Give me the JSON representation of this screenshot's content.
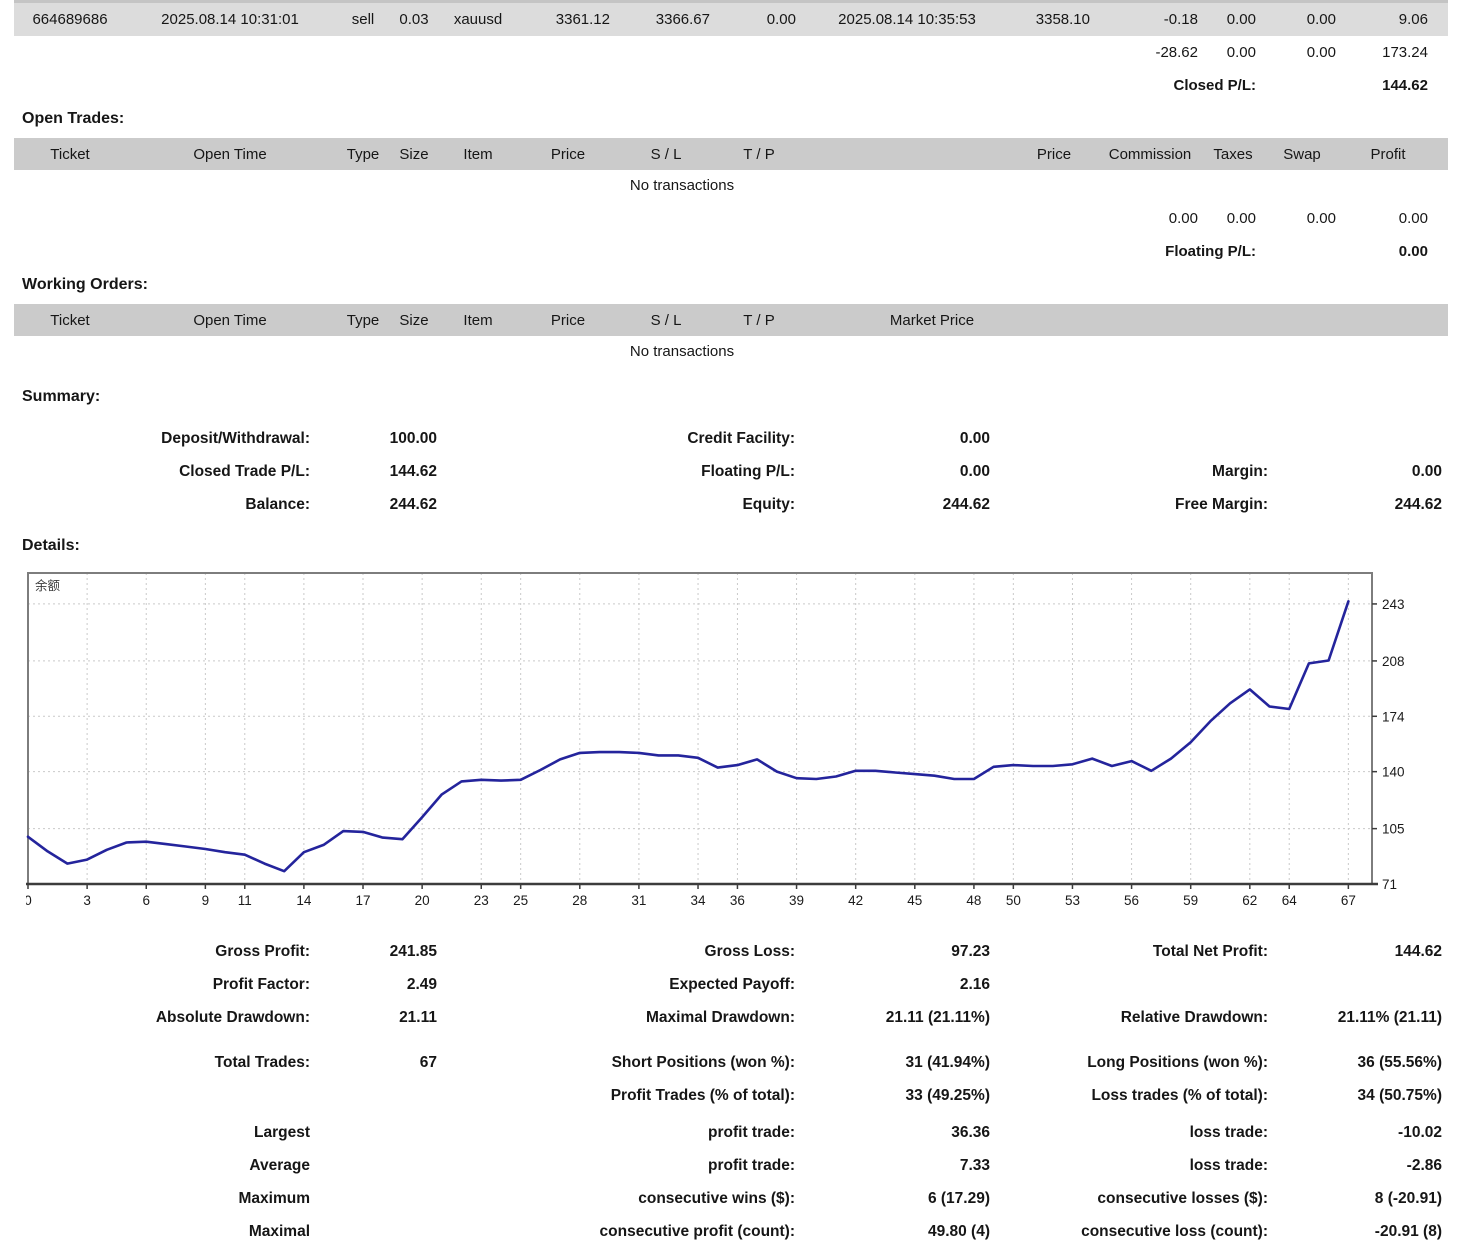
{
  "colors": {
    "accent_line": "#24249C",
    "header_bg": "#cbcbcb",
    "row_bg": "#dcdcdc",
    "grid": "#c9c9c9"
  },
  "closed_trades": {
    "row": {
      "ticket": "664689686",
      "open_time": "2025.08.14 10:31:01",
      "type": "sell",
      "size": "0.03",
      "item": "xauusd",
      "open_price": "3361.12",
      "sl": "3366.67",
      "tp": "0.00",
      "close_time": "2025.08.14 10:35:53",
      "close_price": "3358.10",
      "commission": "-0.18",
      "taxes": "0.00",
      "swap": "0.00",
      "profit": "9.06"
    },
    "totals": {
      "commission": "-28.62",
      "taxes": "0.00",
      "swap": "0.00",
      "profit": "173.24"
    },
    "closed_pl_label": "Closed P/L:",
    "closed_pl_value": "144.62"
  },
  "open_trades": {
    "title": "Open Trades:",
    "headers": {
      "ticket": "Ticket",
      "open_time": "Open Time",
      "type": "Type",
      "size": "Size",
      "item": "Item",
      "price": "Price",
      "sl": "S / L",
      "tp": "T / P",
      "price2": "Price",
      "commission": "Commission",
      "taxes": "Taxes",
      "swap": "Swap",
      "profit": "Profit"
    },
    "empty_text": "No transactions",
    "totals": {
      "commission": "0.00",
      "taxes": "0.00",
      "swap": "0.00",
      "profit": "0.00"
    },
    "floating_pl_label": "Floating P/L:",
    "floating_pl_value": "0.00"
  },
  "working_orders": {
    "title": "Working Orders:",
    "headers": {
      "ticket": "Ticket",
      "open_time": "Open Time",
      "type": "Type",
      "size": "Size",
      "item": "Item",
      "price": "Price",
      "sl": "S / L",
      "tp": "T / P",
      "market_price": "Market Price"
    },
    "empty_text": "No transactions"
  },
  "summary": {
    "title": "Summary:",
    "rows": [
      {
        "l1": "Deposit/Withdrawal:",
        "v1": "100.00",
        "l2": "Credit Facility:",
        "v2": "0.00",
        "l3": "",
        "v3": ""
      },
      {
        "l1": "Closed Trade P/L:",
        "v1": "144.62",
        "l2": "Floating P/L:",
        "v2": "0.00",
        "l3": "Margin:",
        "v3": "0.00"
      },
      {
        "l1": "Balance:",
        "v1": "244.62",
        "l2": "Equity:",
        "v2": "244.62",
        "l3": "Free Margin:",
        "v3": "244.62"
      }
    ]
  },
  "details": {
    "title": "Details:"
  },
  "stats": {
    "block1": [
      {
        "l1": "Gross Profit:",
        "v1": "241.85",
        "l2": "Gross Loss:",
        "v2": "97.23",
        "l3": "Total Net Profit:",
        "v3": "144.62"
      },
      {
        "l1": "Profit Factor:",
        "v1": "2.49",
        "l2": "Expected Payoff:",
        "v2": "2.16",
        "l3": "",
        "v3": ""
      },
      {
        "l1": "Absolute Drawdown:",
        "v1": "21.11",
        "l2": "Maximal Drawdown:",
        "v2": "21.11 (21.11%)",
        "l3": "Relative Drawdown:",
        "v3": "21.11% (21.11)"
      }
    ],
    "block2": [
      {
        "l1": "Total Trades:",
        "v1": "67",
        "l2": "Short Positions (won %):",
        "v2": "31 (41.94%)",
        "l3": "Long Positions (won %):",
        "v3": "36 (55.56%)"
      },
      {
        "l1": "",
        "v1": "",
        "l2": "Profit Trades (% of total):",
        "v2": "33 (49.25%)",
        "l3": "Loss trades (% of total):",
        "v3": "34 (50.75%)"
      }
    ],
    "block3": [
      {
        "l1": "Largest",
        "v1": "",
        "l2": "profit trade:",
        "v2": "36.36",
        "l3": "loss trade:",
        "v3": "-10.02"
      },
      {
        "l1": "Average",
        "v1": "",
        "l2": "profit trade:",
        "v2": "7.33",
        "l3": "loss trade:",
        "v3": "-2.86"
      },
      {
        "l1": "Maximum",
        "v1": "",
        "l2": "consecutive wins ($):",
        "v2": "6 (17.29)",
        "l3": "consecutive losses ($):",
        "v3": "8 (-20.91)"
      },
      {
        "l1": "Maximal",
        "v1": "",
        "l2": "consecutive profit (count):",
        "v2": "49.80 (4)",
        "l3": "consecutive loss (count):",
        "v3": "-20.91 (8)"
      }
    ]
  },
  "chart_data": {
    "type": "line",
    "title": "余额",
    "x": [
      0,
      1,
      2,
      3,
      4,
      5,
      6,
      7,
      8,
      9,
      10,
      11,
      12,
      13,
      14,
      15,
      16,
      17,
      18,
      19,
      20,
      21,
      22,
      23,
      24,
      25,
      26,
      27,
      28,
      29,
      30,
      31,
      32,
      33,
      34,
      35,
      36,
      37,
      38,
      39,
      40,
      41,
      42,
      43,
      44,
      45,
      46,
      47,
      48,
      49,
      50,
      51,
      52,
      53,
      54,
      55,
      56,
      57,
      58,
      59,
      60,
      61,
      62,
      63,
      64,
      65,
      66,
      67
    ],
    "values": [
      100,
      91,
      83.5,
      86,
      92,
      96.5,
      97,
      95.5,
      94,
      92.5,
      90.5,
      89,
      83.5,
      78.89,
      90.5,
      95,
      103.5,
      103,
      99.5,
      98.5,
      112,
      126,
      134,
      135,
      134.5,
      135,
      141,
      147.5,
      151.5,
      152,
      152,
      151.5,
      150,
      150,
      148.5,
      142.5,
      144,
      147.5,
      140,
      136,
      135.5,
      137,
      140.5,
      140.5,
      139.5,
      138.5,
      137.5,
      135.5,
      135.5,
      143,
      144,
      143.5,
      143.5,
      144.5,
      148,
      143.5,
      146.5,
      140.5,
      148,
      158,
      171,
      182,
      190.5,
      180,
      178.5,
      206.5,
      208.26,
      244.62
    ],
    "xticks": [
      0,
      3,
      6,
      9,
      11,
      14,
      17,
      20,
      23,
      25,
      28,
      31,
      34,
      36,
      39,
      42,
      45,
      48,
      50,
      53,
      56,
      59,
      62,
      64,
      67
    ],
    "yticks": [
      71,
      105,
      140,
      174,
      208,
      243
    ],
    "ylim": [
      71,
      262
    ],
    "xlim": [
      0,
      68.2
    ],
    "xlabel": "",
    "ylabel": "",
    "legend": "none",
    "grid": "dashed",
    "line_color": "#24249C"
  }
}
